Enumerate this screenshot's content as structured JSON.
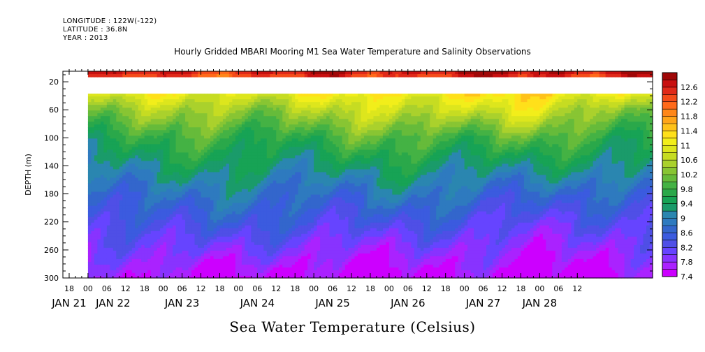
{
  "header": {
    "longitude": "LONGITUDE : 122W(-122)",
    "latitude": "LATITUDE : 36.8N",
    "year": "YEAR : 2013"
  },
  "chart_data": {
    "type": "heatmap",
    "title": "Hourly Gridded MBARI Mooring M1 Sea Water Temperature and Salinity Observations",
    "xlabel": "Sea Water Temperature (Celsius)",
    "ylabel": "DEPTH (m)",
    "x_range_hours": [
      -8,
      180
    ],
    "ylim": [
      300,
      5
    ],
    "data_start_hour": 0,
    "gap_depth_range_m": [
      15,
      35
    ],
    "y_ticks": [
      20,
      60,
      100,
      140,
      180,
      220,
      260,
      300
    ],
    "x_hour_ticks": [
      "18",
      "00",
      "06",
      "12",
      "18",
      "00",
      "06",
      "12",
      "18",
      "00",
      "06",
      "12",
      "18",
      "00",
      "06",
      "12",
      "18",
      "00",
      "06",
      "12",
      "18",
      "00",
      "06",
      "12",
      "18",
      "00",
      "06",
      "12"
    ],
    "x_hour_tick_positions_h": [
      -6,
      0,
      6,
      12,
      18,
      24,
      30,
      36,
      42,
      48,
      54,
      60,
      66,
      72,
      78,
      84,
      90,
      96,
      102,
      108,
      114,
      120,
      126,
      132,
      138,
      144,
      150,
      156
    ],
    "x_day_labels": [
      "JAN 21",
      "JAN 22",
      "JAN 23",
      "JAN 24",
      "JAN 25",
      "JAN 26",
      "JAN 27",
      "JAN 28"
    ],
    "x_day_label_positions_h": [
      -6,
      8,
      30,
      54,
      78,
      102,
      126,
      144
    ],
    "colorbar_ticks": [
      "12.6",
      "12.2",
      "11.8",
      "11.4",
      "11",
      "10.6",
      "10.2",
      "9.8",
      "9.4",
      "9",
      "8.6",
      "8.2",
      "7.8",
      "7.4"
    ],
    "colorbar_levels": [
      7.4,
      7.6,
      7.8,
      8.0,
      8.2,
      8.4,
      8.6,
      8.8,
      9.0,
      9.2,
      9.4,
      9.6,
      9.8,
      10.0,
      10.2,
      10.4,
      10.6,
      10.8,
      11.0,
      11.2,
      11.4,
      11.6,
      11.8,
      12.0,
      12.2,
      12.4,
      12.6,
      12.8
    ],
    "colors": [
      "#cc00ff",
      "#aa22ff",
      "#8833ff",
      "#6644ff",
      "#4f4fe6",
      "#3b5bdf",
      "#3366cc",
      "#2e7abf",
      "#2a86b0",
      "#1a9b6a",
      "#17a355",
      "#2aa84a",
      "#44b244",
      "#66bb3a",
      "#88c533",
      "#aad12c",
      "#c6dc22",
      "#dde61d",
      "#f2ee1a",
      "#ffe01a",
      "#ffc21a",
      "#ffa51a",
      "#ff871a",
      "#ff6a1a",
      "#f44c1a",
      "#e02a1a",
      "#c81010",
      "#a00808"
    ],
    "series": [
      {
        "depth": 5,
        "values": [
          12.6,
          12.6,
          12.6,
          12.7,
          12.8,
          12.7,
          12.9,
          12.8,
          12.9
        ]
      },
      {
        "depth": 40,
        "values": [
          10.8,
          10.9,
          10.9,
          10.9,
          11.0,
          11.1,
          11.2,
          11.2,
          11.0
        ]
      },
      {
        "depth": 60,
        "values": [
          10.3,
          10.4,
          10.5,
          10.4,
          10.6,
          10.8,
          10.8,
          10.9,
          10.4
        ]
      },
      {
        "depth": 100,
        "values": [
          9.6,
          9.8,
          9.8,
          9.7,
          9.9,
          10.0,
          9.9,
          10.0,
          9.7
        ]
      },
      {
        "depth": 140,
        "values": [
          9.0,
          9.4,
          9.3,
          9.3,
          9.3,
          9.4,
          9.3,
          9.3,
          9.2
        ]
      },
      {
        "depth": 180,
        "values": [
          8.6,
          8.9,
          8.9,
          8.8,
          8.8,
          8.9,
          8.8,
          8.7,
          8.6
        ]
      },
      {
        "depth": 220,
        "values": [
          8.2,
          8.5,
          8.5,
          8.4,
          8.4,
          8.4,
          8.3,
          8.2,
          8.2
        ]
      },
      {
        "depth": 260,
        "values": [
          7.8,
          8.1,
          8.0,
          7.9,
          7.8,
          7.9,
          7.8,
          7.8,
          7.8
        ]
      },
      {
        "depth": 300,
        "values": [
          7.5,
          7.6,
          7.5,
          7.4,
          7.4,
          7.5,
          7.5,
          7.4,
          7.5
        ]
      }
    ],
    "series_hours": [
      0,
      20,
      40,
      60,
      80,
      100,
      120,
      140,
      165
    ]
  }
}
